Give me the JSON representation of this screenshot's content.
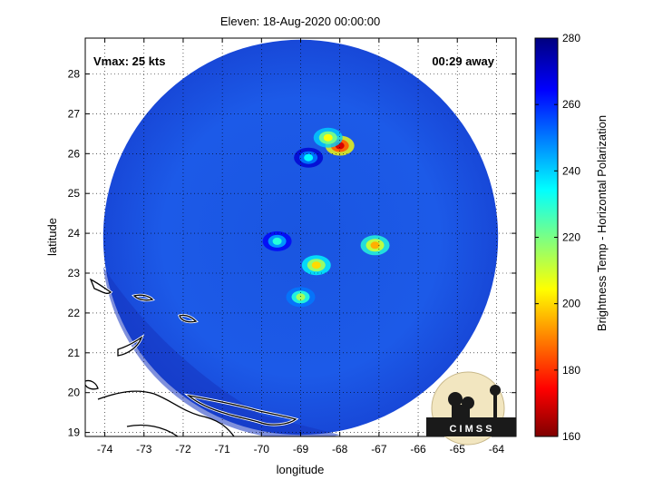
{
  "chart_data": {
    "type": "heatmap",
    "title": "Eleven: 18-Aug-2020 00:00:00",
    "xlabel": "longitude",
    "ylabel": "latitude",
    "xlim": [
      -74.5,
      -63.5
    ],
    "ylim": [
      18.9,
      28.9
    ],
    "x_ticks": [
      -74,
      -73,
      -72,
      -71,
      -70,
      -69,
      -68,
      -67,
      -66,
      -65,
      -64
    ],
    "y_ticks": [
      19,
      20,
      21,
      22,
      23,
      24,
      25,
      26,
      27,
      28
    ],
    "grid": true,
    "annotations": {
      "vmax": "Vmax: 25 kts",
      "time_away": "00:29 away"
    },
    "colorbar": {
      "label": "Brightness Temp - Horizontal Polarization",
      "range": [
        160,
        280
      ],
      "ticks": [
        160,
        180,
        200,
        220,
        240,
        260,
        280
      ]
    },
    "swath": {
      "center": [
        -69.0,
        23.9
      ],
      "radius_deg": 5.0
    },
    "cold_spots": [
      {
        "lon": -68.0,
        "lat": 26.2,
        "value": 170
      },
      {
        "lon": -68.3,
        "lat": 26.4,
        "value": 205
      },
      {
        "lon": -67.1,
        "lat": 23.7,
        "value": 195
      },
      {
        "lon": -68.6,
        "lat": 23.2,
        "value": 200
      },
      {
        "lon": -69.0,
        "lat": 22.4,
        "value": 215
      },
      {
        "lon": -69.6,
        "lat": 23.8,
        "value": 230
      },
      {
        "lon": -68.8,
        "lat": 25.9,
        "value": 235
      }
    ],
    "logo_text": "C I M S S"
  }
}
